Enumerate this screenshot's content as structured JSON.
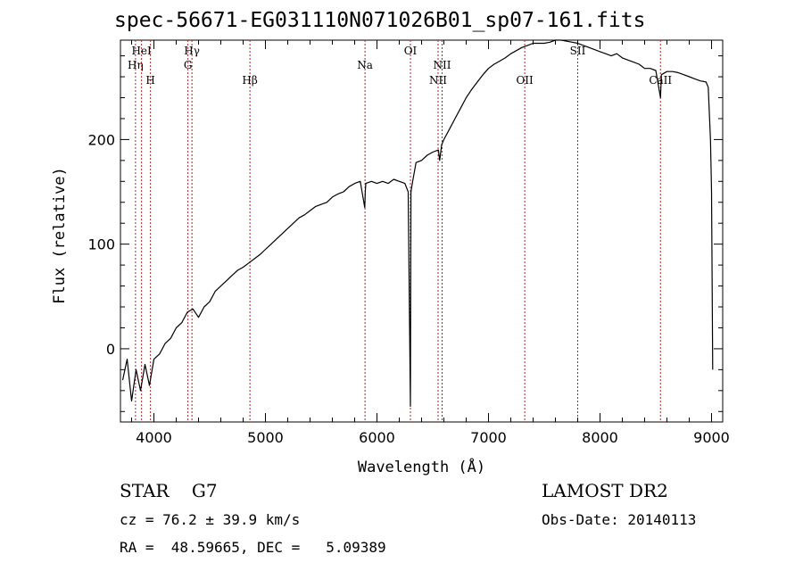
{
  "chart_data": {
    "type": "line",
    "title": "spec-56671-EG031110N071026B01_sp07-161.fits",
    "xlabel": "Wavelength (Å)",
    "ylabel": "Flux (relative)",
    "xlim": [
      3700,
      9100
    ],
    "ylim": [
      -70,
      295
    ],
    "xticks": [
      4000,
      5000,
      6000,
      7000,
      8000,
      9000
    ],
    "yticks": [
      0,
      100,
      200
    ],
    "grid": false,
    "line_color": "#000000",
    "marker_color": "#b22222",
    "series": [
      {
        "x": [
          3720,
          3760,
          3800,
          3840,
          3880,
          3920,
          3960,
          4000,
          4050,
          4100,
          4150,
          4200,
          4250,
          4300,
          4350,
          4400,
          4450,
          4500,
          4550,
          4600,
          4650,
          4700,
          4750,
          4800,
          4850,
          4900,
          4950,
          5000,
          5050,
          5100,
          5150,
          5200,
          5250,
          5300,
          5350,
          5400,
          5450,
          5500,
          5550,
          5600,
          5650,
          5700,
          5750,
          5800,
          5850,
          5890,
          5895,
          5900,
          5950,
          6000,
          6050,
          6100,
          6150,
          6200,
          6250,
          6280,
          6300,
          6305,
          6320,
          6350,
          6400,
          6450,
          6500,
          6550,
          6562,
          6580,
          6600,
          6650,
          6700,
          6750,
          6800,
          6850,
          6900,
          6950,
          7000,
          7050,
          7100,
          7150,
          7200,
          7250,
          7300,
          7350,
          7400,
          7450,
          7500,
          7550,
          7600,
          7650,
          7700,
          7750,
          7800,
          7850,
          7900,
          7950,
          8000,
          8050,
          8100,
          8150,
          8200,
          8250,
          8300,
          8350,
          8400,
          8450,
          8500,
          8542,
          8550,
          8600,
          8650,
          8700,
          8750,
          8800,
          8850,
          8900,
          8950,
          8970,
          8990,
          9000,
          9010
        ],
        "y": [
          -30,
          -10,
          -50,
          -20,
          -40,
          -15,
          -35,
          -10,
          -5,
          5,
          10,
          20,
          25,
          35,
          38,
          30,
          40,
          45,
          55,
          60,
          65,
          70,
          75,
          78,
          82,
          86,
          90,
          95,
          100,
          105,
          110,
          115,
          120,
          125,
          128,
          132,
          136,
          138,
          140,
          145,
          148,
          150,
          155,
          158,
          160,
          135,
          150,
          158,
          160,
          158,
          160,
          158,
          162,
          160,
          158,
          150,
          -55,
          150,
          160,
          178,
          180,
          185,
          188,
          190,
          180,
          195,
          200,
          210,
          220,
          230,
          240,
          248,
          255,
          262,
          268,
          272,
          275,
          278,
          282,
          285,
          288,
          290,
          292,
          292,
          292,
          293,
          295,
          296,
          294,
          293,
          292,
          290,
          288,
          286,
          284,
          282,
          280,
          282,
          278,
          276,
          274,
          272,
          268,
          268,
          266,
          240,
          262,
          265,
          265,
          264,
          262,
          260,
          258,
          256,
          255,
          250,
          200,
          150,
          -20
        ]
      }
    ],
    "line_markers": [
      {
        "label": "Hη",
        "x": 3835,
        "row": 2
      },
      {
        "label": "HeI",
        "x": 3889,
        "row": 1
      },
      {
        "label": "H",
        "x": 3969,
        "row": 3
      },
      {
        "label": "Hγ",
        "x": 4341,
        "row": 1
      },
      {
        "label": "G",
        "x": 4305,
        "row": 2
      },
      {
        "label": "Hβ",
        "x": 4861,
        "row": 3
      },
      {
        "label": "Na",
        "x": 5893,
        "row": 2
      },
      {
        "label": "OI",
        "x": 6300,
        "row": 1
      },
      {
        "label": "NII",
        "x": 6548,
        "row": 3
      },
      {
        "label": "NII",
        "x": 6584,
        "row": 2
      },
      {
        "label": "OII",
        "x": 7325,
        "row": 3
      },
      {
        "label": "SII",
        "x": 7800,
        "row": 1
      },
      {
        "label": "CaII",
        "x": 8542,
        "row": 3
      }
    ]
  },
  "footer": {
    "class_line": "STAR    G7",
    "survey": "LAMOST DR2",
    "cz_line": "cz = 76.2 ± 39.9 km/s",
    "obs_date": "Obs-Date: 20140113",
    "coord_line": "RA =  48.59665, DEC =   5.09389"
  }
}
